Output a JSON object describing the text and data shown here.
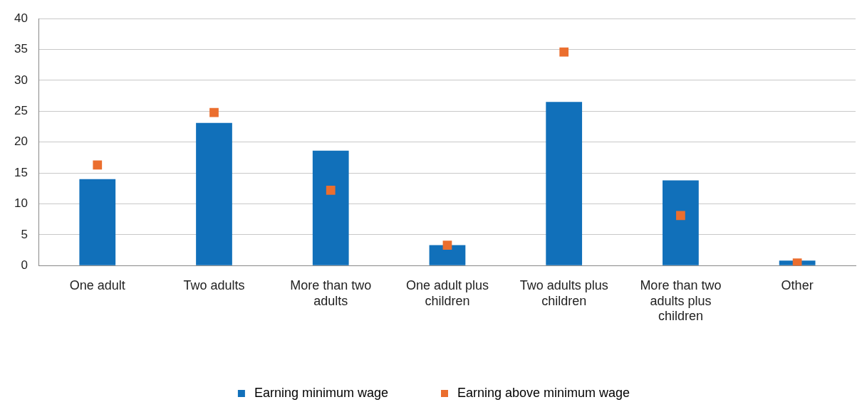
{
  "chart_data": {
    "type": "bar",
    "categories": [
      "One adult",
      "Two adults",
      "More than two adults",
      "One adult plus children",
      "Two adults plus children",
      "More than two adults plus children",
      "Other"
    ],
    "series": [
      {
        "name": "Earning minimum wage",
        "type": "bar",
        "color": "#1170ba",
        "values": [
          14.0,
          23.1,
          18.6,
          3.3,
          26.5,
          13.8,
          0.8
        ]
      },
      {
        "name": "Earning above minimum wage",
        "type": "scatter",
        "marker": "square",
        "color": "#eb6e2e",
        "x": [
          "One adult",
          "Two adults",
          "More than two adults",
          "One adult plus children",
          "Two adults plus children",
          "More than two adults plus children",
          "Other"
        ],
        "values": [
          16.3,
          24.8,
          12.2,
          3.3,
          34.6,
          8.1,
          0.4
        ]
      }
    ],
    "ylim": [
      0,
      40
    ],
    "yticks": [
      0,
      5,
      10,
      15,
      20,
      25,
      30,
      35,
      40
    ],
    "grid": "y",
    "legend": "bottom"
  }
}
